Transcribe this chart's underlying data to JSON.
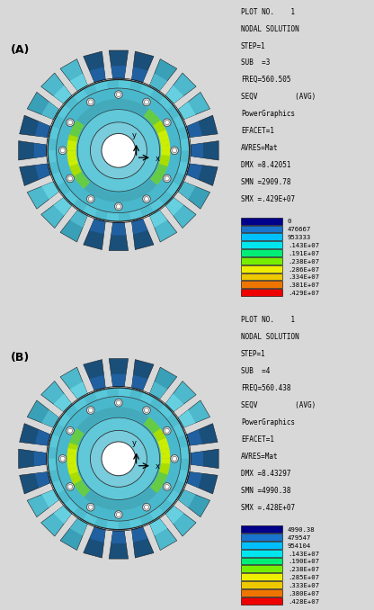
{
  "panel_A": {
    "label": "(A)",
    "info_lines": [
      "PLOT NO.    1",
      "NODAL SOLUTION",
      "STEP=1",
      "SUB  =3",
      "FREQ=560.505",
      "SEQV         (AVG)",
      "PowerGraphics",
      "EFACET=1",
      "AVRES=Mat",
      "DMX =8.42051",
      "SMN =2909.78",
      "SMX =.429E+07"
    ],
    "legend_values": [
      "0",
      "476667",
      "953333",
      ".143E+07",
      ".191E+07",
      ".238E+07",
      ".286E+07",
      ".334E+07",
      ".381E+07",
      ".429E+07"
    ],
    "legend_colors": [
      "#00008B",
      "#1874CD",
      "#00BFFF",
      "#00E5EE",
      "#00EE76",
      "#76EE00",
      "#EEEE00",
      "#EEC900",
      "#EE7600",
      "#EE0000"
    ]
  },
  "panel_B": {
    "label": "(B)",
    "info_lines": [
      "PLOT NO.    1",
      "NODAL SOLUTION",
      "STEP=1",
      "SUB  =4",
      "FREQ=560.438",
      "SEQV         (AVG)",
      "PowerGraphics",
      "EFACET=1",
      "AVRES=Mat",
      "DMX =8.43297",
      "SMN =4990.38",
      "SMX =.428E+07"
    ],
    "legend_values": [
      "4990.38",
      "479547",
      "954104",
      ".143E+07",
      ".190E+07",
      ".238E+07",
      ".285E+07",
      ".333E+07",
      ".380E+07",
      ".428E+07"
    ],
    "legend_colors": [
      "#00008B",
      "#1874CD",
      "#00BFFF",
      "#00E5EE",
      "#00EE76",
      "#76EE00",
      "#EEEE00",
      "#EEC900",
      "#EE7600",
      "#EE0000"
    ]
  },
  "n_blades": 24,
  "n_bolts": 12,
  "r_blade_inner": 1.02,
  "r_blade_outer": 1.42,
  "r_disk_outer": 1.0,
  "r_ring1": 0.88,
  "r_ring2": 0.7,
  "r_ring3": 0.58,
  "r_hub": 0.32,
  "r_bolt": 0.79,
  "bg_color": "#d8d8d8",
  "panel_bg": "#ffffff"
}
